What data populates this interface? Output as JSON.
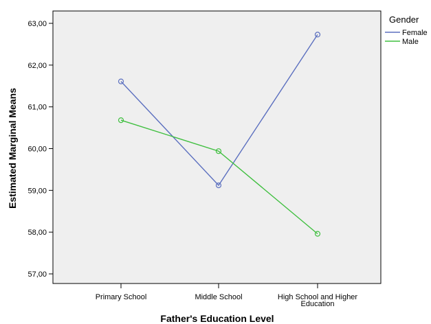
{
  "chart_data": {
    "type": "line",
    "xlabel": "Father's Education Level",
    "ylabel": "Estimated Marginal Means",
    "ylim": [
      57.0,
      63.0
    ],
    "yticks": [
      "57,00",
      "58,00",
      "59,00",
      "60,00",
      "61,00",
      "62,00",
      "63,00"
    ],
    "yticks_values": [
      57,
      58,
      59,
      60,
      61,
      62,
      63
    ],
    "categories": [
      "Primary School",
      "Middle School",
      "High School and Higher Education"
    ],
    "category_labels": [
      [
        "Primary School"
      ],
      [
        "Middle School"
      ],
      [
        "High School and Higher",
        "Education"
      ]
    ],
    "legend": {
      "title": "Gender",
      "placement": "right"
    },
    "grid": false,
    "series": [
      {
        "name": "Female",
        "values": [
          61.61,
          59.12,
          62.73
        ],
        "color": "#5b6fbf"
      },
      {
        "name": "Male",
        "values": [
          60.68,
          59.94,
          57.96
        ],
        "color": "#3fbf3f"
      }
    ],
    "plot_background": "#efefef"
  }
}
